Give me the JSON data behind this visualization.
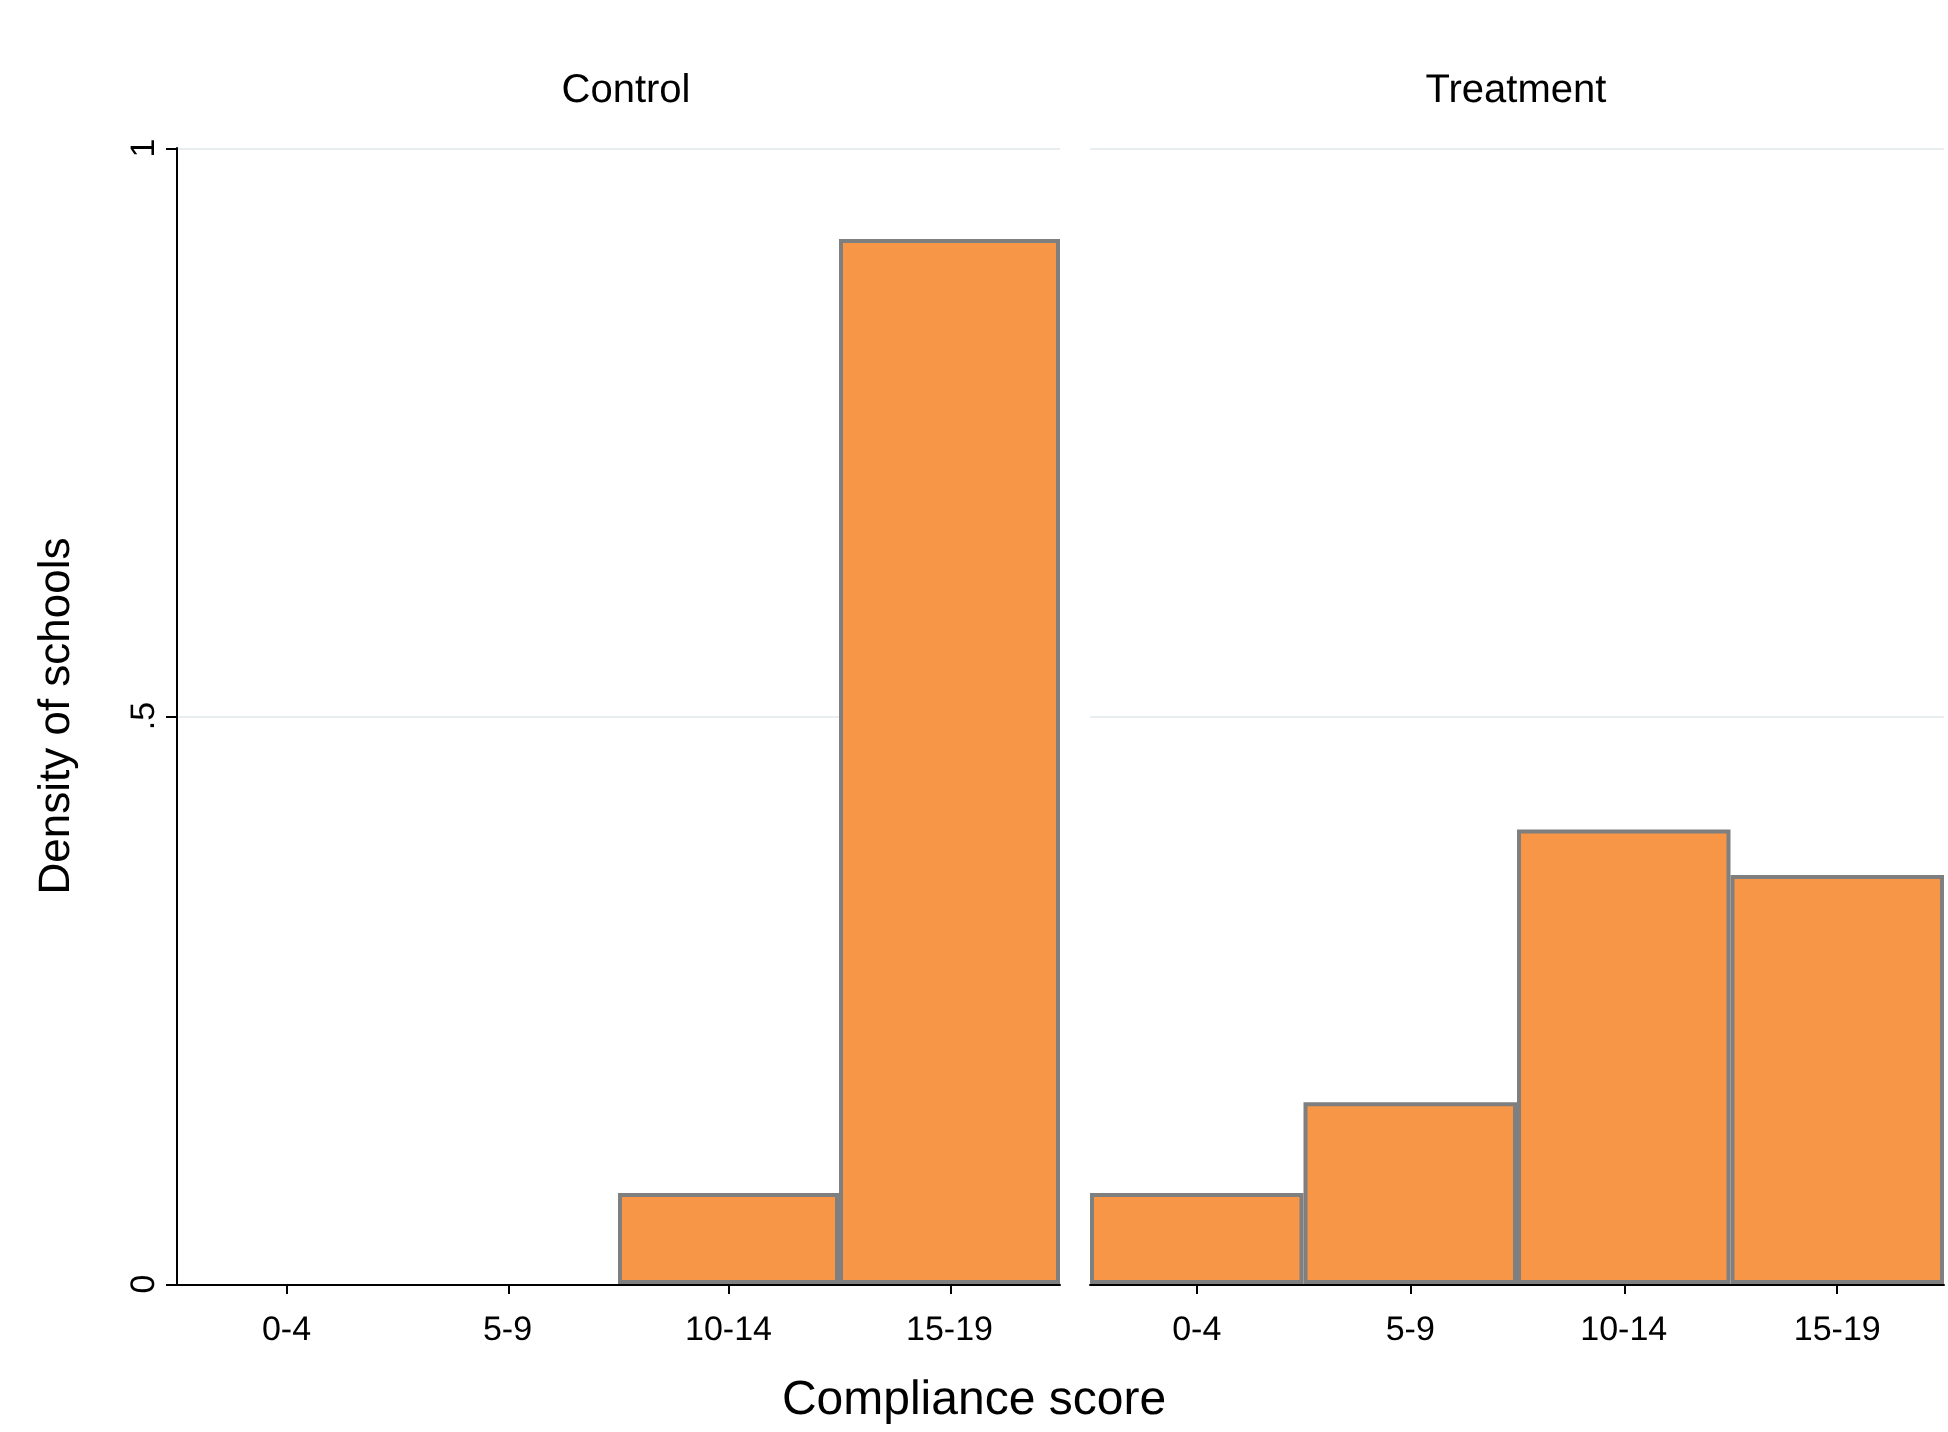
{
  "chart_data": [
    {
      "type": "bar",
      "title": "Control",
      "xlabel": "Compliance score",
      "ylabel": "Density of schools",
      "categories": [
        "0-4",
        "5-9",
        "10-14",
        "15-19"
      ],
      "values": [
        null,
        null,
        0.08,
        0.92
      ],
      "color": "#f79646",
      "ylim": [
        0,
        1
      ],
      "yticks": [
        0,
        {
          "value": 0.5,
          "label": ".5"
        },
        1
      ],
      "grid": "y"
    },
    {
      "type": "bar",
      "title": "Treatment",
      "categories": [
        "0-4",
        "5-9",
        "10-14",
        "15-19"
      ],
      "values": [
        0.08,
        0.16,
        0.4,
        0.36
      ],
      "color": "#f79646",
      "ylim": [
        0,
        1
      ],
      "yticks": [
        0,
        0.5,
        1
      ],
      "grid": "y",
      "tick_labels": "x"
    }
  ]
}
